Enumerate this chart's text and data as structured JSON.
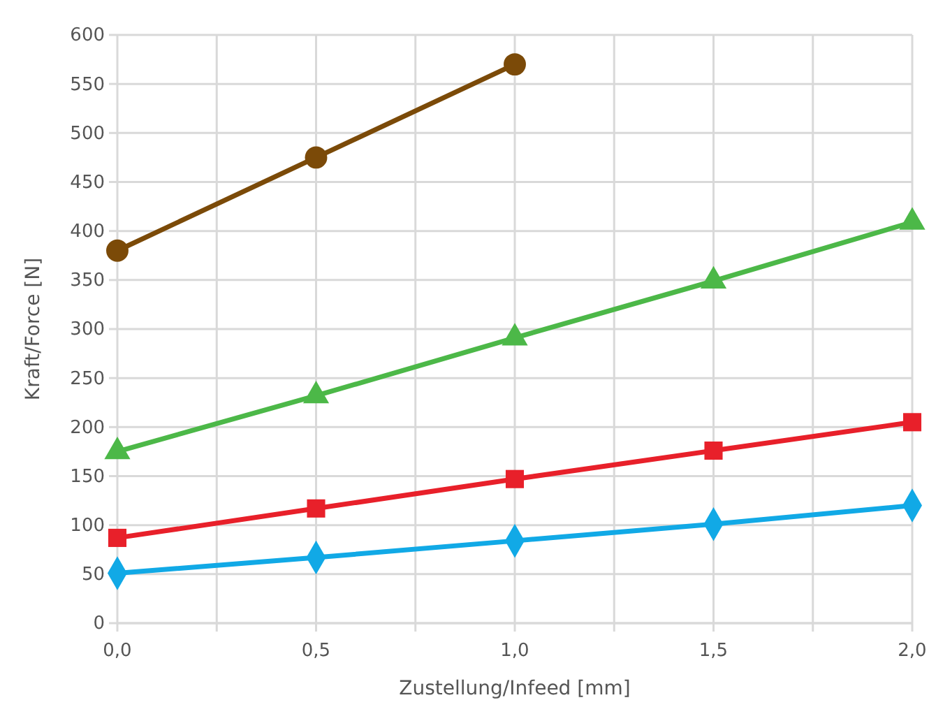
{
  "chart_data": {
    "type": "line",
    "xlabel": "Zustellung/Infeed [mm]",
    "ylabel": "Kraft/Force [N]",
    "xlim": [
      0,
      2
    ],
    "xticks": [
      {
        "value": 0,
        "label": "0,0"
      },
      {
        "value": 0.25,
        "label": null
      },
      {
        "value": 0.5,
        "label": "0,5"
      },
      {
        "value": 0.75,
        "label": null
      },
      {
        "value": 1,
        "label": "1,0"
      },
      {
        "value": 1.25,
        "label": null
      },
      {
        "value": 1.5,
        "label": "1,5"
      },
      {
        "value": 1.75,
        "label": null
      },
      {
        "value": 2,
        "label": "2,0"
      }
    ],
    "ylim": [
      0,
      600
    ],
    "yticks": [
      0,
      50,
      100,
      150,
      200,
      250,
      300,
      350,
      400,
      450,
      500,
      550,
      600
    ],
    "grid": true,
    "line_style": "solid",
    "series": [
      {
        "color": "#7b4a08",
        "marker": "circle",
        "x": [
          0,
          0.5,
          1
        ],
        "values": [
          380,
          475,
          570
        ]
      },
      {
        "color": "#4cb848",
        "marker": "triangle",
        "x": [
          0,
          0.5,
          1,
          1.5,
          2
        ],
        "values": [
          175,
          232,
          291,
          349,
          409
        ]
      },
      {
        "color": "#e8202a",
        "marker": "square",
        "x": [
          0,
          0.5,
          1,
          1.5,
          2
        ],
        "values": [
          87,
          117,
          147,
          176,
          205
        ]
      },
      {
        "color": "#11a9e6",
        "marker": "diamond",
        "x": [
          0,
          0.5,
          1,
          1.5,
          2
        ],
        "values": [
          51,
          67,
          84,
          101,
          120
        ]
      }
    ]
  }
}
